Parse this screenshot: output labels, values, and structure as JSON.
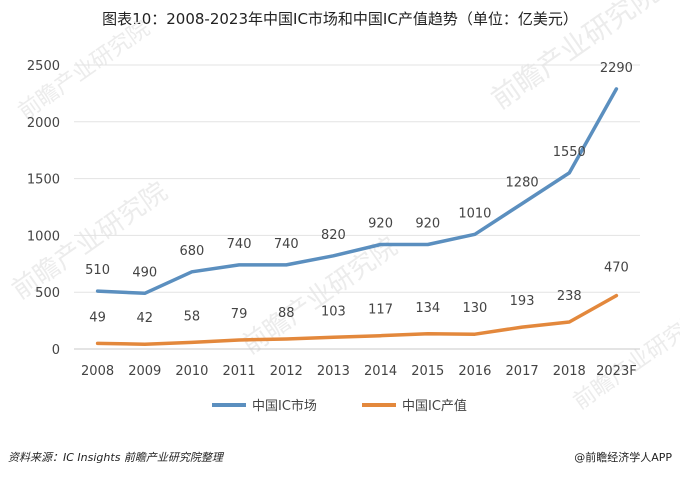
{
  "title": "图表10：2008-2023年中国IC市场和中国IC产值趋势（单位：亿美元）",
  "footer": {
    "source": "资料来源：IC Insights 前瞻产业研究院整理",
    "brand": "@前瞻经济学人APP"
  },
  "watermark": "前瞻产业研究院",
  "chart_data": {
    "type": "line",
    "categories": [
      "2008",
      "2009",
      "2010",
      "2011",
      "2012",
      "2013",
      "2014",
      "2015",
      "2016",
      "2017",
      "2018",
      "2023F"
    ],
    "ylim": [
      0,
      2500
    ],
    "yticks": [
      "0",
      "500",
      "1000",
      "1500",
      "2000",
      "2500"
    ],
    "grid": true,
    "legend_position": "bottom",
    "series": [
      {
        "name": "中国IC市场",
        "color": "#5b8fbf",
        "values": [
          510,
          490,
          680,
          740,
          740,
          820,
          920,
          920,
          1010,
          1280,
          1550,
          2290
        ],
        "labels": [
          "510",
          "490",
          "680",
          "740",
          "740",
          "820",
          "920",
          "920",
          "1010",
          "1280",
          "1550",
          "2290"
        ]
      },
      {
        "name": "中国IC产值",
        "color": "#e3883c",
        "values": [
          49,
          42,
          58,
          79,
          88,
          103,
          117,
          134,
          130,
          193,
          238,
          470
        ],
        "labels": [
          "49",
          "42",
          "58",
          "79",
          "88",
          "103",
          "117",
          "134",
          "130",
          "193",
          "238",
          "470"
        ]
      }
    ]
  }
}
